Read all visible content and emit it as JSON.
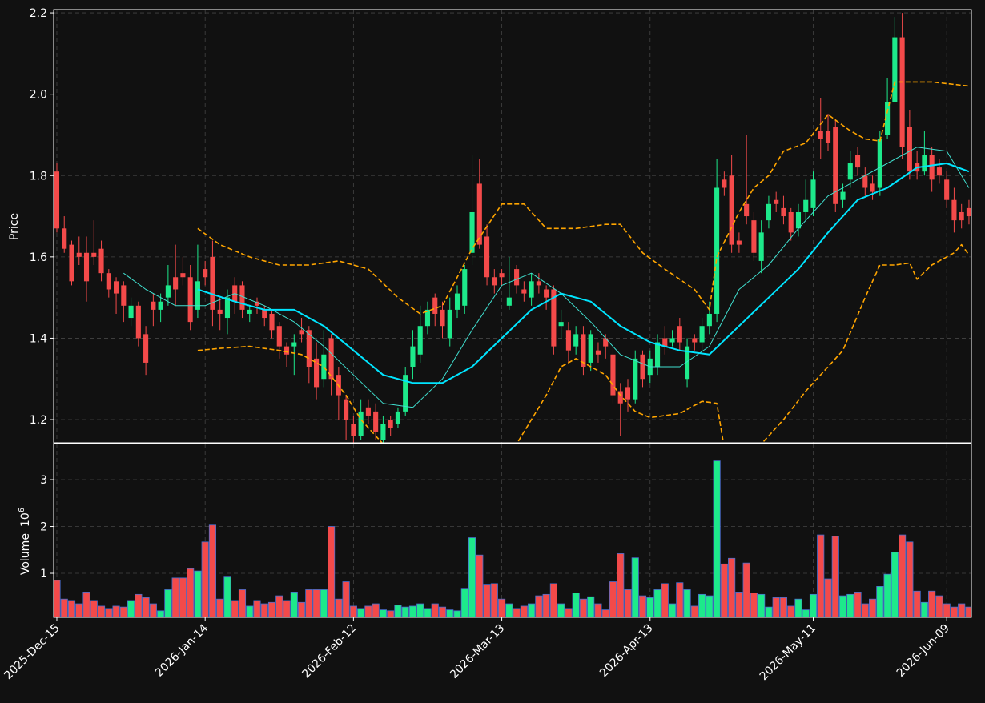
{
  "chart_data": {
    "type": "candlestick",
    "price_label": "Price",
    "volume_label": "Volume",
    "volume_scale_base": "10",
    "volume_scale_exp": "6",
    "up_color": "#1de98b",
    "down_color": "#f34a4a",
    "volume_edge_color": "#4a6fd0",
    "grid": true,
    "xlim": [
      -0.43,
      123.33
    ],
    "xticks": [
      {
        "value": 0,
        "label": "2025-Dec-15"
      },
      {
        "value": 20,
        "label": "2026-Jan-14"
      },
      {
        "value": 40,
        "label": "2026-Feb-12"
      },
      {
        "value": 60,
        "label": "2026-Mar-13"
      },
      {
        "value": 80,
        "label": "2026-Apr-13"
      },
      {
        "value": 102,
        "label": "2026-May-11"
      },
      {
        "value": 120,
        "label": "2026-Jun-09"
      }
    ],
    "ylim": [
      1.143,
      2.208
    ],
    "yticks": [
      1.2,
      1.4,
      1.6,
      1.8,
      {
        "value": 2,
        "label": "2.0"
      },
      2.2
    ],
    "vlim": [
      0.06,
      3.77
    ],
    "vticks": [
      1,
      2,
      3
    ],
    "open": [
      1.81,
      1.67,
      1.63,
      1.61,
      1.61,
      1.61,
      1.62,
      1.56,
      1.54,
      1.53,
      1.45,
      1.48,
      1.41,
      1.49,
      1.47,
      1.5,
      1.55,
      1.56,
      1.55,
      1.47,
      1.57,
      1.6,
      1.47,
      1.45,
      1.53,
      1.53,
      1.46,
      1.49,
      1.47,
      1.46,
      1.43,
      1.38,
      1.38,
      1.42,
      1.42,
      1.35,
      1.3,
      1.4,
      1.31,
      1.25,
      1.19,
      1.16,
      1.23,
      1.22,
      1.15,
      1.2,
      1.19,
      1.22,
      1.33,
      1.36,
      1.43,
      1.5,
      1.47,
      1.4,
      1.47,
      1.48,
      1.61,
      1.78,
      1.65,
      1.55,
      1.56,
      1.48,
      1.57,
      1.52,
      1.5,
      1.54,
      1.52,
      1.52,
      1.43,
      1.42,
      1.38,
      1.41,
      1.34,
      1.37,
      1.4,
      1.36,
      1.27,
      1.28,
      1.25,
      1.36,
      1.31,
      1.33,
      1.4,
      1.39,
      1.43,
      1.3,
      1.4,
      1.39,
      1.43,
      1.46,
      1.79,
      1.8,
      1.64,
      1.73,
      1.69,
      1.59,
      1.69,
      1.74,
      1.72,
      1.71,
      1.67,
      1.71,
      1.72,
      1.91,
      1.91,
      1.92,
      1.74,
      1.79,
      1.85,
      1.8,
      1.78,
      1.77,
      1.9,
      1.98,
      2.14,
      1.92,
      1.83,
      1.81,
      1.85,
      1.82,
      1.79,
      1.74,
      1.71,
      1.72
    ],
    "high": [
      1.83,
      1.7,
      1.64,
      1.65,
      1.65,
      1.69,
      1.64,
      1.57,
      1.55,
      1.54,
      1.5,
      1.49,
      1.43,
      1.51,
      1.51,
      1.58,
      1.63,
      1.6,
      1.58,
      1.63,
      1.59,
      1.64,
      1.5,
      1.52,
      1.55,
      1.54,
      1.48,
      1.5,
      1.48,
      1.47,
      1.44,
      1.39,
      1.41,
      1.45,
      1.43,
      1.39,
      1.42,
      1.41,
      1.33,
      1.26,
      1.21,
      1.25,
      1.25,
      1.24,
      1.21,
      1.21,
      1.23,
      1.33,
      1.42,
      1.48,
      1.49,
      1.51,
      1.49,
      1.5,
      1.53,
      1.58,
      1.85,
      1.84,
      1.68,
      1.57,
      1.57,
      1.6,
      1.58,
      1.54,
      1.56,
      1.56,
      1.53,
      1.53,
      1.47,
      1.44,
      1.43,
      1.43,
      1.42,
      1.39,
      1.41,
      1.38,
      1.29,
      1.3,
      1.37,
      1.37,
      1.37,
      1.41,
      1.43,
      1.42,
      1.45,
      1.4,
      1.41,
      1.45,
      1.49,
      1.84,
      1.81,
      1.85,
      1.66,
      1.9,
      1.71,
      1.69,
      1.75,
      1.76,
      1.75,
      1.72,
      1.73,
      1.79,
      1.81,
      1.99,
      1.95,
      1.94,
      1.78,
      1.86,
      1.87,
      1.82,
      1.8,
      1.91,
      2.04,
      2.19,
      2.2,
      1.96,
      1.86,
      1.91,
      1.87,
      1.84,
      1.81,
      1.77,
      1.73,
      1.74
    ],
    "low": [
      1.66,
      1.61,
      1.53,
      1.58,
      1.49,
      1.58,
      1.54,
      1.5,
      1.46,
      1.44,
      1.43,
      1.38,
      1.31,
      1.43,
      1.44,
      1.48,
      1.48,
      1.53,
      1.42,
      1.45,
      1.53,
      1.43,
      1.42,
      1.41,
      1.46,
      1.45,
      1.44,
      1.46,
      1.43,
      1.4,
      1.35,
      1.33,
      1.31,
      1.39,
      1.29,
      1.25,
      1.28,
      1.26,
      1.2,
      1.15,
      1.14,
      1.15,
      1.19,
      1.15,
      1.14,
      1.16,
      1.18,
      1.21,
      1.3,
      1.34,
      1.41,
      1.43,
      1.4,
      1.38,
      1.45,
      1.46,
      1.58,
      1.62,
      1.53,
      1.51,
      1.53,
      1.47,
      1.51,
      1.49,
      1.48,
      1.51,
      1.47,
      1.36,
      1.4,
      1.34,
      1.36,
      1.31,
      1.32,
      1.34,
      1.35,
      1.24,
      1.16,
      1.22,
      1.24,
      1.28,
      1.29,
      1.31,
      1.36,
      1.38,
      1.37,
      1.28,
      1.37,
      1.37,
      1.41,
      1.44,
      1.75,
      1.61,
      1.61,
      1.68,
      1.59,
      1.56,
      1.67,
      1.71,
      1.68,
      1.64,
      1.65,
      1.69,
      1.7,
      1.84,
      1.86,
      1.71,
      1.72,
      1.77,
      1.8,
      1.75,
      1.74,
      1.75,
      1.89,
      1.98,
      1.84,
      1.79,
      1.79,
      1.8,
      1.76,
      1.78,
      1.72,
      1.66,
      1.67,
      1.68
    ],
    "close": [
      1.67,
      1.62,
      1.54,
      1.6,
      1.54,
      1.6,
      1.56,
      1.52,
      1.51,
      1.48,
      1.48,
      1.4,
      1.34,
      1.47,
      1.49,
      1.53,
      1.52,
      1.55,
      1.44,
      1.54,
      1.55,
      1.47,
      1.46,
      1.5,
      1.49,
      1.47,
      1.47,
      1.48,
      1.45,
      1.42,
      1.38,
      1.36,
      1.39,
      1.41,
      1.33,
      1.28,
      1.36,
      1.3,
      1.26,
      1.2,
      1.16,
      1.22,
      1.21,
      1.17,
      1.19,
      1.18,
      1.22,
      1.31,
      1.38,
      1.43,
      1.47,
      1.46,
      1.43,
      1.47,
      1.51,
      1.57,
      1.71,
      1.63,
      1.55,
      1.53,
      1.55,
      1.5,
      1.53,
      1.51,
      1.54,
      1.53,
      1.5,
      1.38,
      1.44,
      1.37,
      1.41,
      1.33,
      1.41,
      1.36,
      1.38,
      1.26,
      1.24,
      1.25,
      1.35,
      1.3,
      1.35,
      1.39,
      1.38,
      1.4,
      1.39,
      1.38,
      1.39,
      1.43,
      1.46,
      1.77,
      1.77,
      1.63,
      1.63,
      1.7,
      1.61,
      1.66,
      1.73,
      1.73,
      1.7,
      1.66,
      1.71,
      1.74,
      1.79,
      1.89,
      1.88,
      1.73,
      1.76,
      1.83,
      1.82,
      1.77,
      1.76,
      1.89,
      1.98,
      2.14,
      1.87,
      1.81,
      1.81,
      1.85,
      1.79,
      1.8,
      1.74,
      1.69,
      1.69,
      1.7
    ],
    "volume": [
      0.85,
      0.45,
      0.42,
      0.35,
      0.6,
      0.42,
      0.3,
      0.25,
      0.3,
      0.28,
      0.42,
      0.55,
      0.48,
      0.35,
      0.2,
      0.65,
      0.9,
      0.9,
      1.1,
      1.05,
      1.67,
      2.03,
      0.45,
      0.92,
      0.42,
      0.65,
      0.3,
      0.42,
      0.35,
      0.38,
      0.52,
      0.42,
      0.6,
      0.38,
      0.65,
      0.65,
      0.65,
      2.0,
      0.45,
      0.82,
      0.3,
      0.25,
      0.3,
      0.35,
      0.22,
      0.2,
      0.32,
      0.28,
      0.3,
      0.35,
      0.25,
      0.35,
      0.28,
      0.22,
      0.2,
      0.68,
      1.76,
      1.39,
      0.75,
      0.78,
      0.45,
      0.35,
      0.25,
      0.3,
      0.35,
      0.52,
      0.55,
      0.78,
      0.35,
      0.25,
      0.58,
      0.45,
      0.5,
      0.35,
      0.22,
      0.82,
      1.42,
      0.65,
      1.33,
      0.52,
      0.48,
      0.65,
      0.78,
      0.35,
      0.8,
      0.65,
      0.3,
      0.55,
      0.52,
      3.4,
      1.2,
      1.32,
      0.6,
      1.22,
      0.58,
      0.55,
      0.28,
      0.48,
      0.48,
      0.3,
      0.45,
      0.22,
      0.55,
      1.82,
      0.88,
      1.79,
      0.52,
      0.55,
      0.6,
      0.35,
      0.45,
      0.72,
      0.98,
      1.45,
      1.82,
      1.67,
      0.62,
      0.38,
      0.62,
      0.52,
      0.35,
      0.28,
      0.35,
      0.28
    ],
    "lines": [
      {
        "color": "#40e0d0",
        "width": 1,
        "dashed": false,
        "x": [
          9,
          12,
          16,
          20,
          24,
          28,
          32,
          36,
          40,
          44,
          48,
          52,
          56,
          60,
          64,
          68,
          72,
          76,
          80,
          84,
          88,
          92,
          96,
          100,
          104,
          108,
          112,
          116,
          120,
          123
        ],
        "values": [
          1.56,
          1.52,
          1.48,
          1.48,
          1.51,
          1.48,
          1.44,
          1.38,
          1.31,
          1.24,
          1.23,
          1.3,
          1.42,
          1.53,
          1.56,
          1.51,
          1.44,
          1.36,
          1.33,
          1.33,
          1.38,
          1.52,
          1.58,
          1.67,
          1.75,
          1.79,
          1.83,
          1.87,
          1.86,
          1.77
        ]
      },
      {
        "color": "#00e5ff",
        "width": 2,
        "dashed": false,
        "x": [
          19,
          24,
          28,
          32,
          36,
          40,
          44,
          48,
          52,
          56,
          60,
          64,
          68,
          72,
          76,
          80,
          84,
          88,
          92,
          96,
          100,
          104,
          108,
          112,
          116,
          120,
          123
        ],
        "values": [
          1.52,
          1.49,
          1.47,
          1.47,
          1.43,
          1.37,
          1.31,
          1.29,
          1.29,
          1.33,
          1.4,
          1.47,
          1.51,
          1.49,
          1.43,
          1.39,
          1.37,
          1.36,
          1.43,
          1.5,
          1.57,
          1.66,
          1.74,
          1.77,
          1.82,
          1.83,
          1.81
        ]
      },
      {
        "color": "#ffa500",
        "width": 1.6,
        "dashed": true,
        "x": [
          19,
          22,
          26,
          30,
          34,
          38,
          42,
          46,
          49,
          52,
          56,
          60,
          63,
          66,
          70,
          74,
          76,
          79,
          82,
          86,
          88,
          89,
          92,
          94,
          96,
          98,
          101,
          104,
          107,
          109,
          111,
          113,
          118,
          123
        ],
        "values": [
          1.67,
          1.63,
          1.6,
          1.58,
          1.58,
          1.59,
          1.57,
          1.5,
          1.46,
          1.48,
          1.62,
          1.73,
          1.73,
          1.67,
          1.67,
          1.68,
          1.68,
          1.61,
          1.57,
          1.52,
          1.47,
          1.6,
          1.71,
          1.77,
          1.8,
          1.86,
          1.88,
          1.95,
          1.91,
          1.89,
          1.885,
          2.03,
          2.03,
          2.02
        ]
      },
      {
        "color": "#ffa500",
        "width": 1.6,
        "dashed": true,
        "x": [
          19,
          22,
          26,
          30,
          33,
          36,
          39,
          41,
          44,
          45,
          52,
          61,
          62,
          66,
          68,
          70,
          72,
          74,
          76,
          78,
          80,
          84,
          87,
          89,
          90,
          92,
          94,
          95,
          98,
          101,
          104,
          106,
          109,
          111,
          113,
          115,
          116,
          118,
          121,
          122,
          123
        ],
        "values": [
          1.37,
          1.375,
          1.38,
          1.37,
          1.36,
          1.33,
          1.26,
          1.2,
          1.14,
          1.12,
          null,
          1.12,
          1.14,
          1.26,
          1.33,
          1.35,
          1.33,
          1.31,
          1.26,
          1.22,
          1.205,
          1.215,
          1.245,
          1.24,
          1.13,
          null,
          1.12,
          1.14,
          1.2,
          1.27,
          1.33,
          1.37,
          1.5,
          1.58,
          1.58,
          1.585,
          1.545,
          1.58,
          1.61,
          1.63,
          1.605
        ]
      }
    ]
  }
}
